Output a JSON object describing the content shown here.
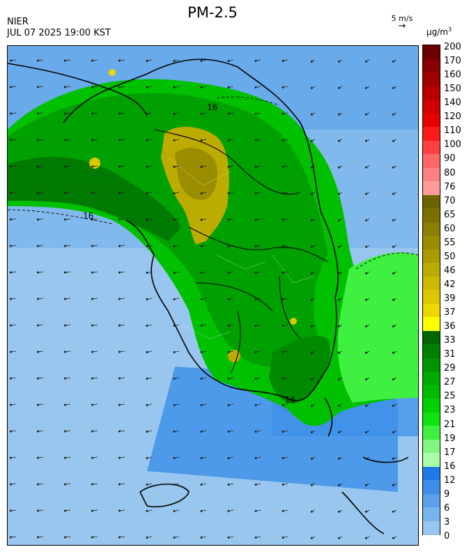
{
  "header": {
    "agency": "NIER",
    "datetime": "JUL 07 2025 19:00 KST",
    "title": "PM-2.5",
    "wind_scale": "5 m/s",
    "unit_base": "μg/m",
    "unit_exp": "3"
  },
  "map": {
    "contour_labels": [
      "16",
      "16",
      "16"
    ]
  },
  "legend": {
    "ticks": [
      "200",
      "170",
      "160",
      "150",
      "140",
      "120",
      "110",
      "100",
      "90",
      "80",
      "76",
      "70",
      "65",
      "60",
      "55",
      "50",
      "46",
      "42",
      "39",
      "37",
      "36",
      "33",
      "31",
      "29",
      "27",
      "25",
      "23",
      "21",
      "19",
      "17",
      "16",
      "12",
      "9",
      "6",
      "3",
      "0"
    ],
    "colors": [
      "#6a0000",
      "#880000",
      "#a00000",
      "#b80000",
      "#d00000",
      "#e80000",
      "#ff1a1a",
      "#ff4040",
      "#ff6666",
      "#ff8080",
      "#ff9a9a",
      "#6b6200",
      "#7a7000",
      "#8a7f00",
      "#9a8d00",
      "#aa9b00",
      "#bcab00",
      "#ccb900",
      "#dcc800",
      "#ecd800",
      "#ffff00",
      "#006600",
      "#008000",
      "#009400",
      "#00a800",
      "#00bc00",
      "#00d000",
      "#10e410",
      "#40f040",
      "#80f880",
      "#a8ffa8",
      "#1e78e6",
      "#3c8ee8",
      "#5aa0ea",
      "#78b4ec",
      "#98c6ee"
    ]
  }
}
